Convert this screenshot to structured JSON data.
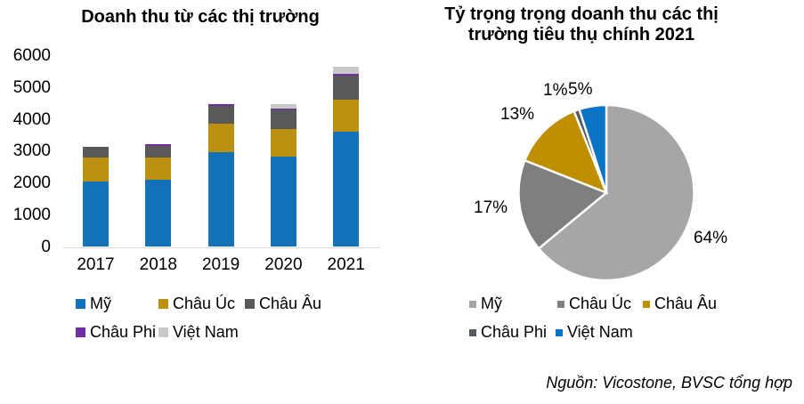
{
  "page": {
    "background": "#ffffff",
    "source_note": "Nguồn: Vicostone, BVSC tổng hợp"
  },
  "chart_data": [
    {
      "type": "bar",
      "stacked": true,
      "title": "Doanh thu từ các thị trường",
      "categories": [
        "2017",
        "2018",
        "2019",
        "2020",
        "2021"
      ],
      "series": [
        {
          "name": "Mỹ",
          "color": "#1271B8",
          "values": [
            2050,
            2090,
            2980,
            2820,
            3610
          ]
        },
        {
          "name": "Châu Úc",
          "color": "#BC900F",
          "values": [
            750,
            700,
            890,
            870,
            1000
          ]
        },
        {
          "name": "Châu Âu",
          "color": "#595959",
          "values": [
            350,
            380,
            560,
            630,
            780
          ]
        },
        {
          "name": "Châu Phi",
          "color": "#7030A0",
          "values": [
            0,
            50,
            40,
            30,
            50
          ]
        },
        {
          "name": "Việt Nam",
          "color": "#C9C9C9",
          "values": [
            0,
            0,
            0,
            140,
            210
          ]
        }
      ],
      "xlabel": "",
      "ylabel": "",
      "ylim": [
        0,
        6000
      ],
      "yticks": [
        0,
        1000,
        2000,
        3000,
        4000,
        5000,
        6000
      ],
      "grid": false,
      "legend_position": "bottom",
      "axis_line_color": "#D9D9D9"
    },
    {
      "type": "pie",
      "title": "Tỷ trọng trọng doanh thu các thị trường tiêu thụ chính 2021",
      "title_lines": [
        "Tỷ trọng trọng doanh thu các thị",
        "trường tiêu thụ chính 2021"
      ],
      "slices": [
        {
          "label": "Mỹ",
          "value": 64,
          "display": "64%",
          "color": "#A6A6A6"
        },
        {
          "label": "Châu Úc",
          "value": 17,
          "display": "17%",
          "color": "#7F7F7F"
        },
        {
          "label": "Châu Âu",
          "value": 13,
          "display": "13%",
          "color": "#BF8F00"
        },
        {
          "label": "Châu Phi",
          "value": 1,
          "display": "1%",
          "color": "#545A61"
        },
        {
          "label": "Việt Nam",
          "value": 5,
          "display": "5%",
          "color": "#0B74C4"
        }
      ],
      "start_angle_deg": 0,
      "direction": "clockwise",
      "slice_border_color": "#FFFFFF",
      "legend_position": "bottom"
    }
  ]
}
